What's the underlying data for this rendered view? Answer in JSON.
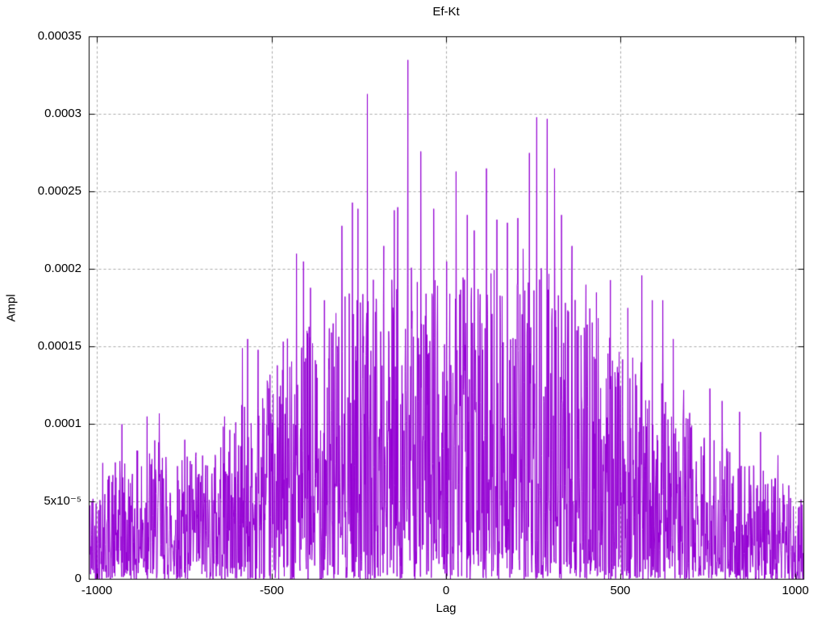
{
  "chart_data": {
    "type": "line",
    "title": "Ef-Kt",
    "xlabel": "Lag",
    "ylabel": "Ampl",
    "xlim": [
      -1024,
      1024
    ],
    "ylim": [
      0,
      0.00035
    ],
    "x_ticks": [
      {
        "v": -1000,
        "label": "-1000"
      },
      {
        "v": -500,
        "label": "-500"
      },
      {
        "v": 0,
        "label": "0"
      },
      {
        "v": 500,
        "label": "500"
      },
      {
        "v": 1000,
        "label": "1000"
      }
    ],
    "y_ticks": [
      {
        "v": 0,
        "label": "0"
      },
      {
        "v": 5e-05,
        "label": "5x10⁻⁵"
      },
      {
        "v": 0.0001,
        "label": "0.0001"
      },
      {
        "v": 0.00015,
        "label": "0.00015"
      },
      {
        "v": 0.0002,
        "label": "0.0002"
      },
      {
        "v": 0.00025,
        "label": "0.00025"
      },
      {
        "v": 0.0003,
        "label": "0.0003"
      },
      {
        "v": 0.00035,
        "label": "0.00035"
      }
    ],
    "grid": true,
    "legend_position": "none",
    "line_color": "#9400d3",
    "grid_color": "#a8a8a8",
    "border_color": "#000000",
    "background_color": "#ffffff",
    "n_points": 2048,
    "noise_seed": 42,
    "fill_exponent": 1.7,
    "envelope": [
      [
        -1024,
        6.2e-05
      ],
      [
        -960,
        7.5e-05
      ],
      [
        -900,
        8e-05
      ],
      [
        -850,
        9.5e-05
      ],
      [
        -780,
        8e-05
      ],
      [
        -700,
        8.5e-05
      ],
      [
        -640,
        0.0001
      ],
      [
        -560,
        0.00012
      ],
      [
        -500,
        0.000135
      ],
      [
        -450,
        0.000165
      ],
      [
        -400,
        0.000165
      ],
      [
        -340,
        0.000175
      ],
      [
        -280,
        0.000185
      ],
      [
        -220,
        0.000195
      ],
      [
        -160,
        0.0002
      ],
      [
        -100,
        0.000205
      ],
      [
        -40,
        0.000195
      ],
      [
        0,
        0.00019
      ],
      [
        50,
        0.000195
      ],
      [
        120,
        0.000205
      ],
      [
        180,
        0.000215
      ],
      [
        240,
        0.000215
      ],
      [
        300,
        0.000195
      ],
      [
        360,
        0.000185
      ],
      [
        420,
        0.000175
      ],
      [
        480,
        0.000155
      ],
      [
        540,
        0.000145
      ],
      [
        600,
        0.000135
      ],
      [
        660,
        0.000115
      ],
      [
        720,
        0.000105
      ],
      [
        780,
        9e-05
      ],
      [
        840,
        8e-05
      ],
      [
        900,
        7.2e-05
      ],
      [
        960,
        6.5e-05
      ],
      [
        1024,
        5.8e-05
      ]
    ],
    "peaks": [
      [
        -985,
        7.5e-05
      ],
      [
        -930,
        0.0001
      ],
      [
        -858,
        0.000105
      ],
      [
        -823,
        0.000107
      ],
      [
        -750,
        9e-05
      ],
      [
        -636,
        0.000105
      ],
      [
        -585,
        0.000149
      ],
      [
        -570,
        0.000155
      ],
      [
        -540,
        0.000148
      ],
      [
        -470,
        0.000135
      ],
      [
        -430,
        0.00021
      ],
      [
        -410,
        0.000205
      ],
      [
        -390,
        0.000188
      ],
      [
        -350,
        0.00018
      ],
      [
        -325,
        0.000165
      ],
      [
        -300,
        0.000228
      ],
      [
        -270,
        0.000243
      ],
      [
        -254,
        0.000239
      ],
      [
        -227,
        0.000313
      ],
      [
        -180,
        0.000215
      ],
      [
        -150,
        0.000238
      ],
      [
        -140,
        0.00024
      ],
      [
        -111,
        0.000335
      ],
      [
        -74,
        0.000276
      ],
      [
        -37,
        0.000239
      ],
      [
        0,
        0.000205
      ],
      [
        28,
        0.000263
      ],
      [
        60,
        0.000235
      ],
      [
        80,
        0.000225
      ],
      [
        115,
        0.000265
      ],
      [
        145,
        0.000232
      ],
      [
        175,
        0.00023
      ],
      [
        205,
        0.000233
      ],
      [
        238,
        0.000275
      ],
      [
        259,
        0.000298
      ],
      [
        289,
        0.000297
      ],
      [
        310,
        0.000265
      ],
      [
        330,
        0.000235
      ],
      [
        360,
        0.000215
      ],
      [
        400,
        0.00019
      ],
      [
        430,
        0.000185
      ],
      [
        470,
        0.000193
      ],
      [
        520,
        0.000175
      ],
      [
        560,
        0.000196
      ],
      [
        590,
        0.00018
      ],
      [
        620,
        0.00018
      ],
      [
        650,
        0.000155
      ],
      [
        680,
        0.000122
      ],
      [
        755,
        0.000123
      ],
      [
        790,
        0.000115
      ],
      [
        840,
        0.000108
      ],
      [
        900,
        9.5e-05
      ],
      [
        950,
        8e-05
      ]
    ]
  }
}
